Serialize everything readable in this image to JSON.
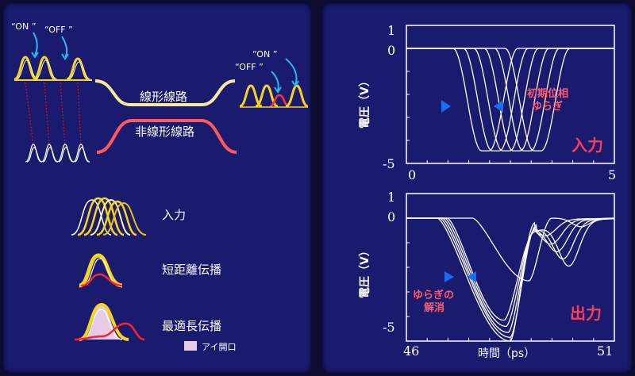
{
  "left": {
    "labels": {
      "on_left": "“ON ”",
      "off_left": "“OFF ”",
      "on_right": "“ON ”",
      "off_right": "“OFF ”",
      "linear_line": "線形線路",
      "nonlinear_line": "非線形線路"
    },
    "legend": {
      "input": "入力",
      "short": "短距離伝播",
      "optimal": "最適長伝播",
      "eye_opening": "アイ開口"
    }
  },
  "right": {
    "top_chart": {
      "y_top": "1",
      "y_zero": "0",
      "y_bottom": "-5",
      "x_left": "0",
      "x_right": "5",
      "ylabel": "電圧（V）",
      "annotation_line1": "初期位相",
      "annotation_line2": "ゆらぎ",
      "corner_label": "入力"
    },
    "bottom_chart": {
      "y_top": "1",
      "y_zero": "0",
      "y_bottom": "-5",
      "x_left": "46",
      "x_right": "51",
      "xlabel": "時間（ps）",
      "ylabel": "電圧（V）",
      "annotation_line1": "ゆらぎの",
      "annotation_line2": "解消",
      "corner_label": "出力"
    }
  },
  "chart_data": [
    {
      "type": "line",
      "title": "入力",
      "ylabel": "電圧（V）",
      "xlim": [
        0,
        5
      ],
      "ylim": [
        -5,
        1
      ],
      "pulse_depth": -4.45,
      "pulse_centers": [
        1.9,
        2.15,
        2.4,
        2.65,
        2.9,
        3.15
      ]
    },
    {
      "type": "line",
      "title": "出力",
      "xlabel": "時間（ps）",
      "ylabel": "電圧（V）",
      "xlim": [
        46,
        51
      ],
      "ylim": [
        -5,
        1
      ],
      "trace_minima": [
        {
          "t": 48.5,
          "v": -5.0
        },
        {
          "t": 48.5,
          "v": -4.85
        },
        {
          "t": 48.45,
          "v": -4.65
        },
        {
          "t": 48.4,
          "v": -4.4
        },
        {
          "t": 48.35,
          "v": -4.15
        },
        {
          "t": 48.95,
          "v": -2.55
        }
      ]
    }
  ]
}
